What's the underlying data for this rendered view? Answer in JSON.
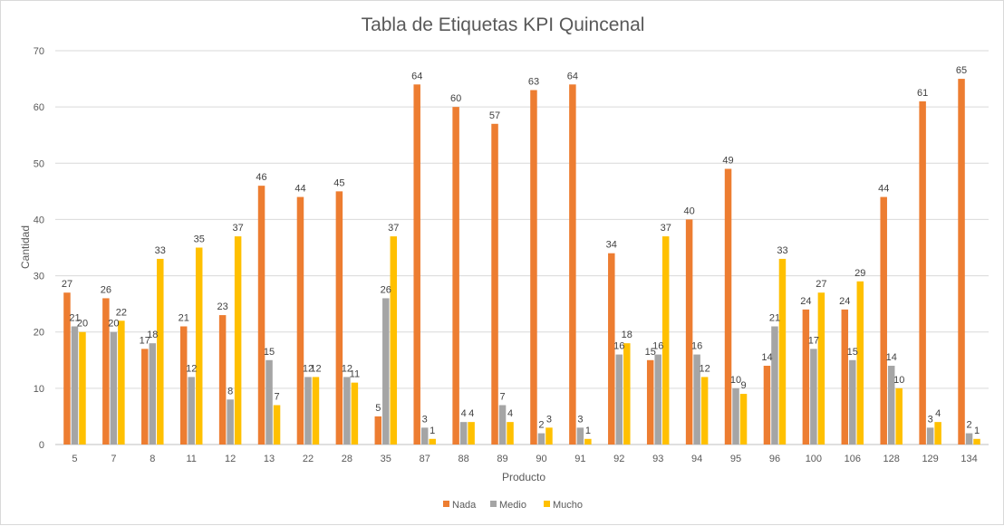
{
  "chart_data": {
    "type": "bar",
    "title": "Tabla de Etiquetas KPI Quincenal",
    "xlabel": "Producto",
    "ylabel": "Cantidad",
    "ylim": [
      0,
      70
    ],
    "yticks": [
      "0",
      "10",
      "20",
      "30",
      "40",
      "50",
      "60",
      "70"
    ],
    "grid": true,
    "legend_position": "bottom",
    "categories": [
      "5",
      "7",
      "8",
      "11",
      "12",
      "13",
      "22",
      "28",
      "35",
      "87",
      "88",
      "89",
      "90",
      "91",
      "92",
      "93",
      "94",
      "95",
      "96",
      "100",
      "106",
      "128",
      "129",
      "134"
    ],
    "series": [
      {
        "name": "Nada",
        "color": "#ED7D31",
        "values": [
          27,
          26,
          17,
          21,
          23,
          46,
          44,
          45,
          5,
          64,
          60,
          57,
          63,
          64,
          34,
          15,
          40,
          49,
          14,
          24,
          24,
          44,
          61,
          65
        ]
      },
      {
        "name": "Medio",
        "color": "#A5A5A5",
        "values": [
          21,
          20,
          18,
          12,
          8,
          15,
          12,
          12,
          26,
          3,
          4,
          7,
          2,
          3,
          16,
          16,
          16,
          10,
          21,
          17,
          15,
          14,
          3,
          2
        ]
      },
      {
        "name": "Mucho",
        "color": "#FFC000",
        "values": [
          20,
          22,
          33,
          35,
          37,
          7,
          12,
          11,
          37,
          1,
          4,
          4,
          3,
          1,
          18,
          37,
          12,
          9,
          33,
          27,
          29,
          10,
          4,
          1
        ]
      }
    ]
  }
}
